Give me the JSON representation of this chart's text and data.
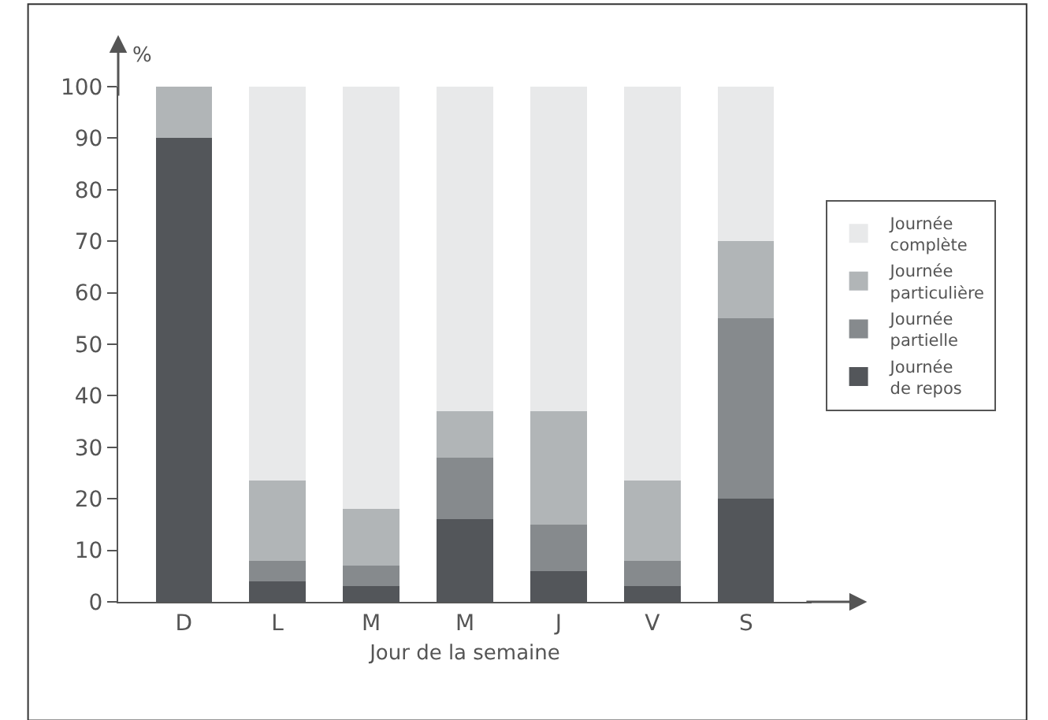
{
  "chart_data": {
    "type": "bar",
    "stacked": true,
    "categories": [
      "D",
      "L",
      "M",
      "M",
      "J",
      "V",
      "S"
    ],
    "xlabel": "Jour de la semaine",
    "ylabel": "%",
    "series": [
      {
        "name": "Journée de repos",
        "color": "#53565a",
        "values": [
          90,
          4,
          3,
          16,
          6,
          3,
          20
        ]
      },
      {
        "name": "Journée partielle",
        "color": "#868a8d",
        "values": [
          0,
          4,
          4,
          12,
          9,
          5,
          35
        ]
      },
      {
        "name": "Journée particulière",
        "color": "#b1b5b7",
        "values": [
          10,
          15.5,
          11,
          9,
          22,
          15.5,
          15
        ]
      },
      {
        "name": "Journée complète",
        "color": "#e8e9ea",
        "values": [
          0,
          76.5,
          82,
          63,
          63,
          76.5,
          30
        ]
      }
    ],
    "ylim": [
      0,
      100
    ],
    "yticks": [
      0,
      10,
      20,
      30,
      40,
      50,
      60,
      70,
      80,
      90,
      100
    ],
    "legend": "right"
  }
}
